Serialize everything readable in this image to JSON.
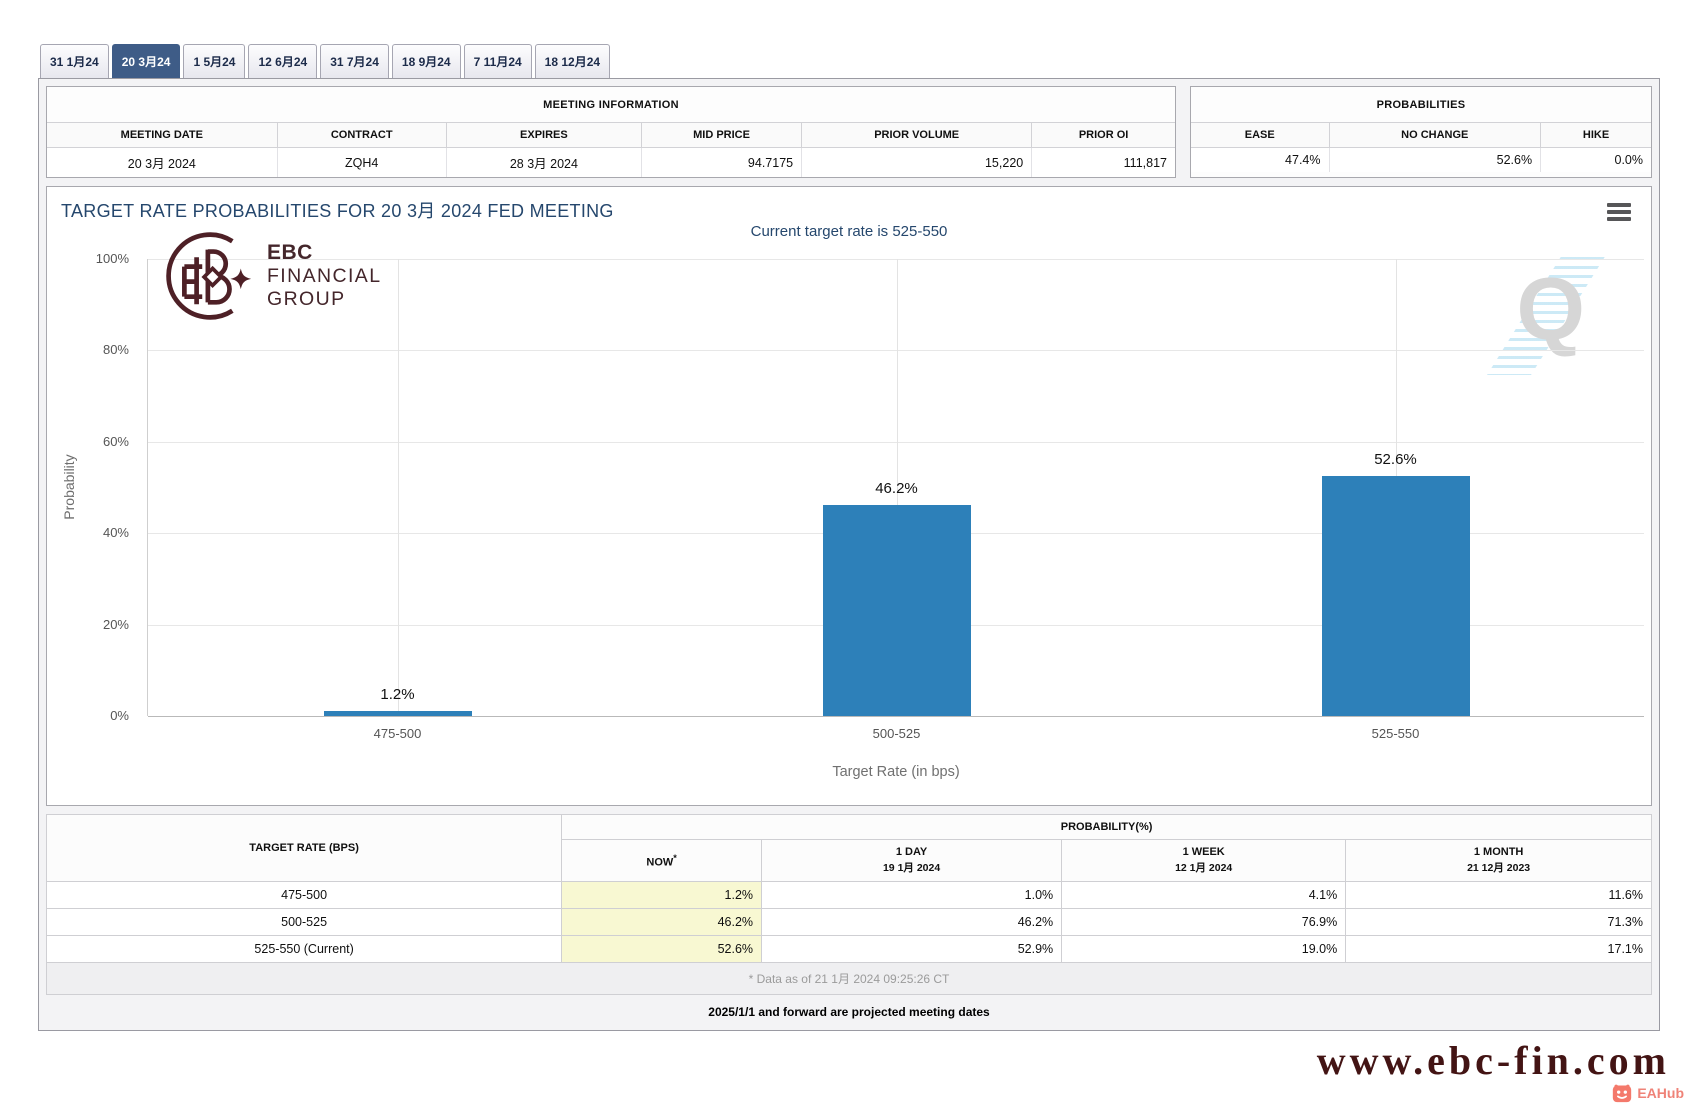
{
  "tabs": [
    {
      "label": "31 1月24",
      "active": false
    },
    {
      "label": "20 3月24",
      "active": true
    },
    {
      "label": "1 5月24",
      "active": false
    },
    {
      "label": "12 6月24",
      "active": false
    },
    {
      "label": "31 7月24",
      "active": false
    },
    {
      "label": "18 9月24",
      "active": false
    },
    {
      "label": "7 11月24",
      "active": false
    },
    {
      "label": "18 12月24",
      "active": false
    }
  ],
  "meeting_information": {
    "title": "MEETING INFORMATION",
    "columns": [
      "MEETING DATE",
      "CONTRACT",
      "EXPIRES",
      "MID PRICE",
      "PRIOR VOLUME",
      "PRIOR OI"
    ],
    "values": [
      "20 3月 2024",
      "ZQH4",
      "28 3月 2024",
      "94.7175",
      "15,220",
      "111,817"
    ]
  },
  "probabilities_panel": {
    "title": "PROBABILITIES",
    "columns": [
      "EASE",
      "NO CHANGE",
      "HIKE"
    ],
    "values": [
      "47.4%",
      "52.6%",
      "0.0%"
    ]
  },
  "chart": {
    "title": "TARGET RATE PROBABILITIES FOR 20 3月 2024 FED MEETING",
    "subtitle": "Current target rate is 525-550",
    "watermark_letter": "Q",
    "logo": {
      "line1": "EBC",
      "line2": "FINANCIAL",
      "line3": "GROUP"
    }
  },
  "chart_data": {
    "type": "bar",
    "categories": [
      "475-500",
      "500-525",
      "525-550"
    ],
    "values": [
      1.2,
      46.2,
      52.6
    ],
    "labels": [
      "1.2%",
      "46.2%",
      "52.6%"
    ],
    "title": "TARGET RATE PROBABILITIES FOR 20 3月 2024 FED MEETING",
    "subtitle": "Current target rate is 525-550",
    "xlabel": "Target Rate (in bps)",
    "ylabel": "Probability",
    "ylim": [
      0,
      100
    ],
    "yticks": [
      "100%",
      "80%",
      "60%",
      "40%",
      "20%",
      "0%"
    ],
    "grid": true,
    "legend": "none",
    "bar_color": "#2d80b9"
  },
  "probability_table": {
    "corner_header": "TARGET RATE (BPS)",
    "group_header": "PROBABILITY(%)",
    "sub_headers": [
      {
        "line1": "NOW",
        "sup": "*",
        "line2": ""
      },
      {
        "line1": "1 DAY",
        "line2": "19 1月 2024"
      },
      {
        "line1": "1 WEEK",
        "line2": "12 1月 2024"
      },
      {
        "line1": "1 MONTH",
        "line2": "21 12月 2023"
      }
    ],
    "rows": [
      {
        "rate": "475-500",
        "now": "1.2%",
        "day": "1.0%",
        "week": "4.1%",
        "month": "11.6%"
      },
      {
        "rate": "500-525",
        "now": "46.2%",
        "day": "46.2%",
        "week": "76.9%",
        "month": "71.3%"
      },
      {
        "rate": "525-550 (Current)",
        "now": "52.6%",
        "day": "52.9%",
        "week": "19.0%",
        "month": "17.1%"
      }
    ],
    "footnote": "* Data as of 21 1月 2024 09:25:26 CT"
  },
  "notes": {
    "projected": "2025/1/1 and forward are projected meeting dates"
  },
  "footer": {
    "website": "www.ebc-fin.com",
    "badge_label": "EAHub"
  },
  "icons": {
    "menu": "hamburger-icon",
    "watermark": "quikstrike-q-watermark",
    "badge": "eahub-pig-icon"
  },
  "colors": {
    "bar": "#2d80b9",
    "active_tab": "#3e5c87",
    "title_navy": "#25476d",
    "brand_maroon": "#44262b",
    "website_maroon": "#431414",
    "now_highlight": "#f8f8d2",
    "badge_pink": "#ef8378"
  }
}
